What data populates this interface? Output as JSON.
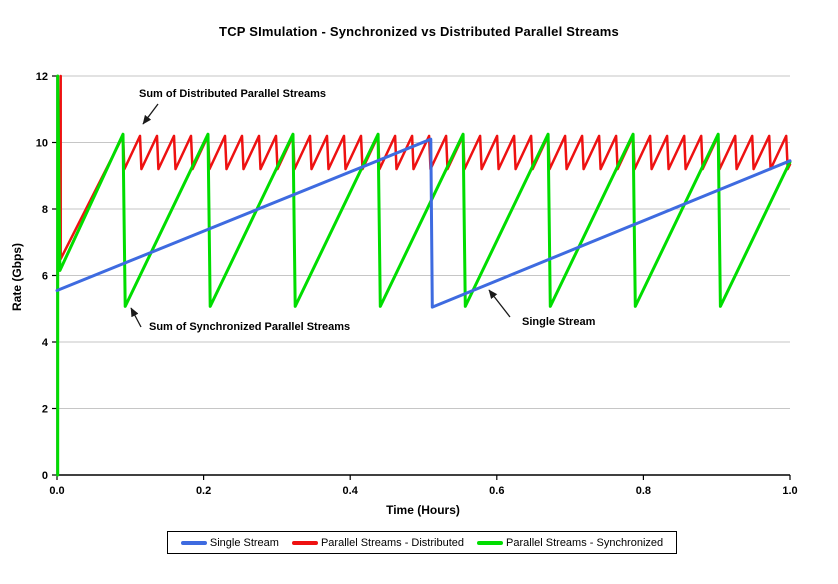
{
  "title": "TCP SImulation - Synchronized vs Distributed Parallel Streams",
  "annotations": [
    {
      "text": "Sum of Distributed Parallel Streams"
    },
    {
      "text": "Sum of Synchronized Parallel Streams"
    },
    {
      "text": "Single Stream"
    }
  ],
  "chart_data": {
    "type": "line",
    "title": "TCP SImulation - Synchronized vs Distributed Parallel Streams",
    "xlabel": "Time (Hours)",
    "ylabel": "Rate (Gbps)",
    "xlim": [
      0,
      1
    ],
    "ylim": [
      0,
      12
    ],
    "xtick_labels": [
      "0.0",
      "0.2",
      "0.4",
      "0.6",
      "0.8",
      "1.0"
    ],
    "ytick_labels": [
      "0",
      "2",
      "4",
      "6",
      "8",
      "10",
      "12"
    ],
    "grid": "horizontal",
    "grid_color": "#c6c6c6",
    "axis_color": "#000000",
    "legend_position": "bottom-center",
    "series": [
      {
        "name": "Single Stream",
        "color": "#3e6be0",
        "stroke_width": 3,
        "points": [
          [
            0,
            5.55
          ],
          [
            0.51,
            10.1
          ],
          [
            0.512,
            5.05
          ],
          [
            1.0,
            9.45
          ]
        ]
      },
      {
        "name": "Parallel Streams - Distributed",
        "color": "#ee1111",
        "stroke_width": 2.5,
        "initial": [
          [
            0.005,
            12
          ],
          [
            0.005,
            6.5
          ]
        ],
        "sawtooth": {
          "first_peak_t": 0.09,
          "period": 0.0232,
          "peak": 10.2,
          "valley": 9.2,
          "drop_dt": 0.002,
          "until": 1.0,
          "tail_slope": 43
        }
      },
      {
        "name": "Parallel Streams - Synchronized",
        "color": "#00dd00",
        "stroke_width": 3,
        "initial": [
          [
            0.001,
            0
          ],
          [
            0.001,
            12
          ],
          [
            0.004,
            6.15
          ]
        ],
        "sawtooth": {
          "first_peak_t": 0.09,
          "period": 0.116,
          "peak": 10.25,
          "valley": 5.07,
          "drop_dt": 0.003,
          "until": 1.0,
          "tail_slope": 45.8
        }
      }
    ]
  }
}
